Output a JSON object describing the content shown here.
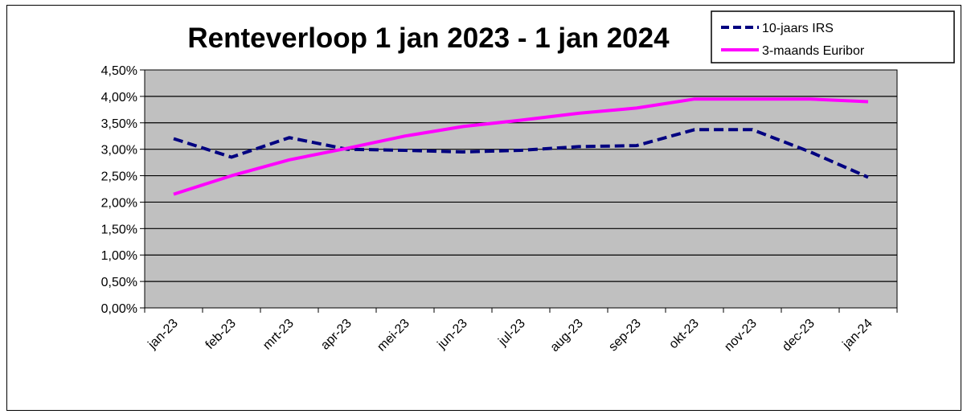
{
  "chart_data": {
    "type": "line",
    "title": "Renteverloop 1 jan 2023 - 1 jan 2024",
    "xlabel": "",
    "ylabel": "",
    "categories": [
      "jan-23",
      "feb-23",
      "mrt-23",
      "apr-23",
      "mei-23",
      "jun-23",
      "jul-23",
      "aug-23",
      "sep-23",
      "okt-23",
      "nov-23",
      "dec-23",
      "jan-24"
    ],
    "y_ticks": [
      "0,00%",
      "0,50%",
      "1,00%",
      "1,50%",
      "2,00%",
      "2,50%",
      "3,00%",
      "3,50%",
      "4,00%",
      "4,50%"
    ],
    "ylim": [
      0,
      4.5
    ],
    "grid": true,
    "plot_background": "#C0C0C0",
    "legend_position": "top-right",
    "series": [
      {
        "name": "10-jaars IRS",
        "color": "#000080",
        "style": "dashed",
        "values": [
          3.2,
          2.85,
          3.22,
          3.0,
          2.98,
          2.95,
          2.98,
          3.05,
          3.07,
          3.37,
          3.37,
          2.95,
          2.47
        ]
      },
      {
        "name": "3-maands Euribor",
        "color": "#FF00FF",
        "style": "solid",
        "values": [
          2.15,
          2.5,
          2.8,
          3.02,
          3.25,
          3.43,
          3.55,
          3.68,
          3.78,
          3.95,
          3.95,
          3.95,
          3.9
        ]
      }
    ]
  }
}
